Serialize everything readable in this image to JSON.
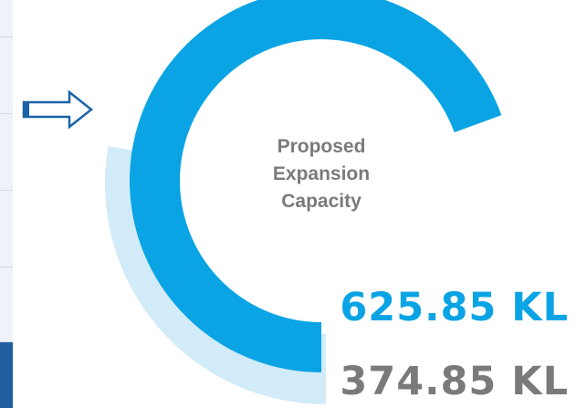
{
  "colors": {
    "primary": "#0aa4e4",
    "secondary": "#d2ebf8",
    "label": "#7a7a7a",
    "strip": "#eef2f9",
    "strip_active": "#1f5fa0"
  },
  "icons": {
    "pointer": "right-arrow-icon"
  },
  "chart_data": {
    "type": "radial-bar",
    "center_label": "Proposed\nExpansion\nCapacity",
    "unit": "KL",
    "series": [
      {
        "label": "625.85 KL",
        "value": 625.85,
        "color": "#0aa4e4"
      },
      {
        "label": "374.85 KL",
        "value": 374.85,
        "color": "#d2ebf8"
      }
    ]
  }
}
